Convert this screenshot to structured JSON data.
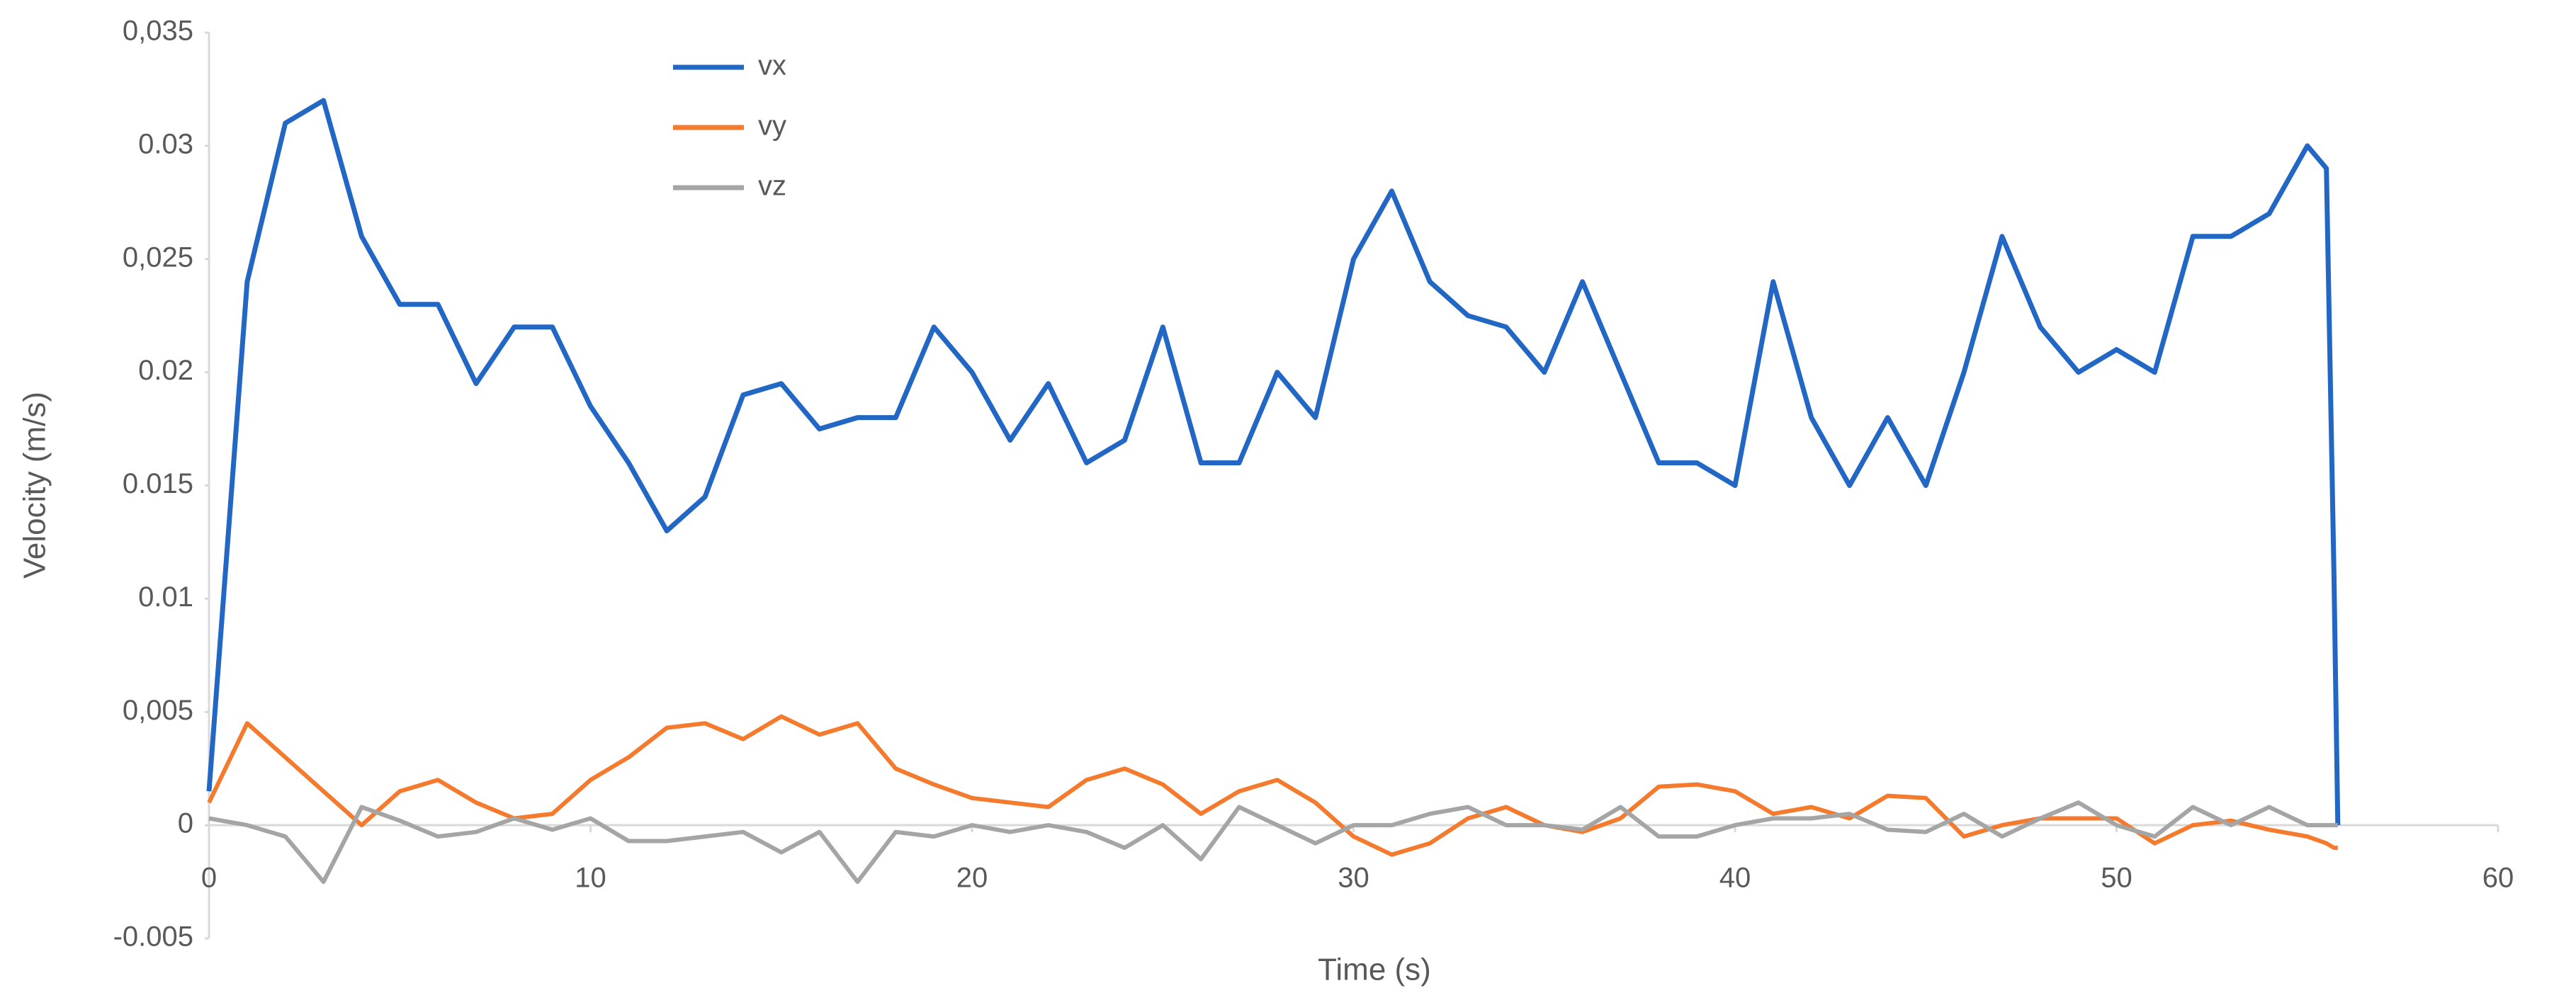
{
  "chart_data": {
    "type": "line",
    "xlabel": "Time (s)",
    "ylabel": "Velocity  (m/s)",
    "x": [
      0,
      1,
      2,
      3,
      4,
      5,
      6,
      7,
      8,
      9,
      10,
      11,
      12,
      13,
      14,
      15,
      16,
      17,
      18,
      19,
      20,
      21,
      22,
      23,
      24,
      25,
      26,
      27,
      28,
      29,
      30,
      31,
      32,
      33,
      34,
      35,
      36,
      37,
      38,
      39,
      40,
      41,
      42,
      43,
      44,
      45,
      46,
      47,
      48,
      49,
      50,
      51,
      52,
      53,
      54,
      55,
      55.5,
      55.7,
      55.8
    ],
    "series": [
      {
        "name": "vx",
        "color": "#2367c4",
        "values": [
          0.0015,
          0.024,
          0.031,
          0.032,
          0.026,
          0.023,
          0.023,
          0.0195,
          0.022,
          0.022,
          0.0185,
          0.016,
          0.013,
          0.0145,
          0.019,
          0.0195,
          0.0175,
          0.018,
          0.018,
          0.022,
          0.02,
          0.017,
          0.0195,
          0.016,
          0.017,
          0.022,
          0.016,
          0.016,
          0.02,
          0.018,
          0.025,
          0.028,
          0.024,
          0.0225,
          0.022,
          0.02,
          0.024,
          0.02,
          0.016,
          0.016,
          0.015,
          0.024,
          0.018,
          0.015,
          0.018,
          0.015,
          0.02,
          0.026,
          0.022,
          0.02,
          0.021,
          0.02,
          0.026,
          0.026,
          0.027,
          0.03,
          0.029,
          0.011,
          0
        ]
      },
      {
        "name": "vy",
        "color": "#f47a2e",
        "values": [
          0.001,
          0.0045,
          0.003,
          0.0015,
          0,
          0.0015,
          0.002,
          0.001,
          0.0003,
          0.0005,
          0.002,
          0.003,
          0.0043,
          0.0045,
          0.0038,
          0.0048,
          0.004,
          0.0045,
          0.0025,
          0.0018,
          0.0012,
          0.001,
          0.0008,
          0.002,
          0.0025,
          0.0018,
          0.0005,
          0.0015,
          0.002,
          0.001,
          -0.0005,
          -0.0013,
          -0.0008,
          0.0003,
          0.0008,
          0,
          -0.0003,
          0.0003,
          0.0017,
          0.0018,
          0.0015,
          0.0005,
          0.0008,
          0.0003,
          0.0013,
          0.0012,
          -0.0005,
          0,
          0.0003,
          0.0003,
          0.0003,
          -0.0008,
          0,
          0.0002,
          -0.0002,
          -0.0005,
          -0.0008,
          -0.001,
          -0.001
        ]
      },
      {
        "name": "vz",
        "color": "#a5a5a5",
        "values": [
          0.0003,
          0,
          -0.0005,
          -0.0025,
          0.0008,
          0.0002,
          -0.0005,
          -0.0003,
          0.0003,
          -0.0002,
          0.0003,
          -0.0007,
          -0.0007,
          -0.0005,
          -0.0003,
          -0.0012,
          -0.0003,
          -0.0025,
          -0.0003,
          -0.0005,
          0,
          -0.0003,
          0,
          -0.0003,
          -0.001,
          0,
          -0.0015,
          0.0008,
          0,
          -0.0008,
          0,
          0,
          0.0005,
          0.0008,
          0,
          0,
          -0.0002,
          0.0008,
          -0.0005,
          -0.0005,
          0,
          0.0003,
          0.0003,
          0.0005,
          -0.0002,
          -0.0003,
          0.0005,
          -0.0005,
          0.0003,
          0.001,
          0,
          -0.0005,
          0.0008,
          0,
          0.0008,
          0,
          0,
          0,
          0
        ]
      }
    ],
    "xlim": [
      0,
      60
    ],
    "xticks": [
      0,
      10,
      20,
      30,
      40,
      50,
      60
    ],
    "ylim": [
      -0.005,
      0.035
    ],
    "yticks": [
      {
        "value": -0.005,
        "label": "-0.005"
      },
      0,
      {
        "value": 0.005,
        "label": "0,005"
      },
      0.01,
      0.015,
      0.02,
      {
        "value": 0.025,
        "label": "0,025"
      },
      0.03,
      {
        "value": 0.035,
        "label": "0,035"
      }
    ],
    "grid": false,
    "legend": "top-left"
  }
}
